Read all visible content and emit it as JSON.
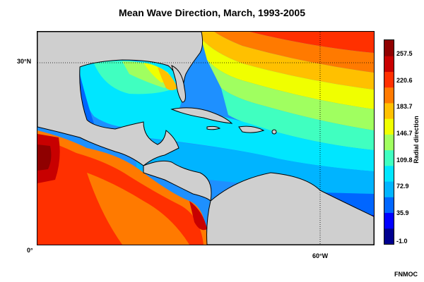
{
  "title": "Mean Wave Direction, March, 1993-2005",
  "map": {
    "grid_labels": {
      "lat_30": "30°N",
      "lat_0": "0°",
      "lon_60": "60°W"
    }
  },
  "colorbar": {
    "label": "Radial direction",
    "ticks": [
      "257.5",
      "220.6",
      "183.7",
      "146.7",
      "109.8",
      "72.9",
      "35.9",
      "-1.0"
    ],
    "range": [
      -1.0,
      257.5
    ]
  },
  "credit": "FNMOC",
  "colors": {
    "land": "#cfcfcf",
    "palette": [
      "#00008f",
      "#0000ff",
      "#0066ff",
      "#00b4ff",
      "#00e6ff",
      "#40ffc0",
      "#a0ff60",
      "#f0ff00",
      "#ffc000",
      "#ff7a00",
      "#ff3000",
      "#c80000",
      "#8f0000"
    ]
  }
}
